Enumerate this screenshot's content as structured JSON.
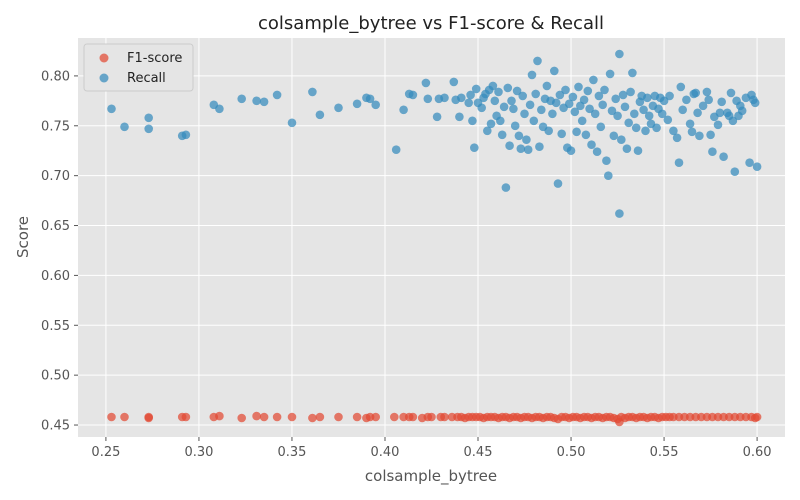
{
  "chart_data": {
    "type": "scatter",
    "title": "colsample_bytree vs F1-score & Recall",
    "xlabel": "colsample_bytree",
    "ylabel": "Score",
    "xlim": [
      0.235,
      0.615
    ],
    "ylim": [
      0.438,
      0.838
    ],
    "xticks": [
      "0.25",
      "0.30",
      "0.35",
      "0.40",
      "0.45",
      "0.50",
      "0.55",
      "0.60"
    ],
    "yticks": [
      "0.45",
      "0.50",
      "0.55",
      "0.60",
      "0.65",
      "0.70",
      "0.75",
      "0.80"
    ],
    "grid": true,
    "legend_position": "top-left",
    "series": [
      {
        "name": "F1-score",
        "color": "#E24A33",
        "points": [
          [
            0.253,
            0.458
          ],
          [
            0.26,
            0.458
          ],
          [
            0.273,
            0.458
          ],
          [
            0.273,
            0.457
          ],
          [
            0.291,
            0.458
          ],
          [
            0.293,
            0.458
          ],
          [
            0.308,
            0.458
          ],
          [
            0.311,
            0.459
          ],
          [
            0.323,
            0.457
          ],
          [
            0.331,
            0.459
          ],
          [
            0.335,
            0.458
          ],
          [
            0.342,
            0.458
          ],
          [
            0.35,
            0.458
          ],
          [
            0.361,
            0.457
          ],
          [
            0.365,
            0.458
          ],
          [
            0.375,
            0.458
          ],
          [
            0.385,
            0.458
          ],
          [
            0.39,
            0.457
          ],
          [
            0.392,
            0.458
          ],
          [
            0.395,
            0.458
          ],
          [
            0.405,
            0.458
          ],
          [
            0.41,
            0.458
          ],
          [
            0.413,
            0.458
          ],
          [
            0.415,
            0.458
          ],
          [
            0.42,
            0.457
          ],
          [
            0.423,
            0.458
          ],
          [
            0.425,
            0.458
          ],
          [
            0.43,
            0.458
          ],
          [
            0.432,
            0.458
          ],
          [
            0.436,
            0.458
          ],
          [
            0.439,
            0.458
          ],
          [
            0.441,
            0.458
          ],
          [
            0.443,
            0.457
          ],
          [
            0.445,
            0.458
          ],
          [
            0.447,
            0.458
          ],
          [
            0.449,
            0.458
          ],
          [
            0.451,
            0.458
          ],
          [
            0.453,
            0.457
          ],
          [
            0.455,
            0.458
          ],
          [
            0.457,
            0.458
          ],
          [
            0.459,
            0.458
          ],
          [
            0.461,
            0.457
          ],
          [
            0.463,
            0.458
          ],
          [
            0.465,
            0.458
          ],
          [
            0.467,
            0.457
          ],
          [
            0.469,
            0.458
          ],
          [
            0.471,
            0.458
          ],
          [
            0.473,
            0.457
          ],
          [
            0.475,
            0.458
          ],
          [
            0.477,
            0.458
          ],
          [
            0.479,
            0.457
          ],
          [
            0.481,
            0.458
          ],
          [
            0.483,
            0.458
          ],
          [
            0.485,
            0.457
          ],
          [
            0.487,
            0.458
          ],
          [
            0.489,
            0.458
          ],
          [
            0.491,
            0.457
          ],
          [
            0.493,
            0.456
          ],
          [
            0.495,
            0.458
          ],
          [
            0.497,
            0.458
          ],
          [
            0.499,
            0.457
          ],
          [
            0.501,
            0.458
          ],
          [
            0.503,
            0.458
          ],
          [
            0.505,
            0.457
          ],
          [
            0.507,
            0.458
          ],
          [
            0.509,
            0.458
          ],
          [
            0.511,
            0.457
          ],
          [
            0.513,
            0.458
          ],
          [
            0.515,
            0.458
          ],
          [
            0.517,
            0.457
          ],
          [
            0.519,
            0.458
          ],
          [
            0.521,
            0.458
          ],
          [
            0.523,
            0.457
          ],
          [
            0.525,
            0.456
          ],
          [
            0.526,
            0.453
          ],
          [
            0.527,
            0.458
          ],
          [
            0.529,
            0.457
          ],
          [
            0.531,
            0.458
          ],
          [
            0.533,
            0.458
          ],
          [
            0.535,
            0.457
          ],
          [
            0.537,
            0.458
          ],
          [
            0.539,
            0.458
          ],
          [
            0.541,
            0.457
          ],
          [
            0.543,
            0.458
          ],
          [
            0.545,
            0.458
          ],
          [
            0.547,
            0.457
          ],
          [
            0.549,
            0.458
          ],
          [
            0.551,
            0.458
          ],
          [
            0.553,
            0.458
          ],
          [
            0.555,
            0.458
          ],
          [
            0.558,
            0.458
          ],
          [
            0.561,
            0.458
          ],
          [
            0.564,
            0.458
          ],
          [
            0.567,
            0.458
          ],
          [
            0.57,
            0.458
          ],
          [
            0.573,
            0.458
          ],
          [
            0.576,
            0.458
          ],
          [
            0.579,
            0.458
          ],
          [
            0.582,
            0.458
          ],
          [
            0.585,
            0.458
          ],
          [
            0.588,
            0.458
          ],
          [
            0.591,
            0.458
          ],
          [
            0.594,
            0.458
          ],
          [
            0.597,
            0.458
          ],
          [
            0.599,
            0.457
          ],
          [
            0.6,
            0.458
          ]
        ]
      },
      {
        "name": "Recall",
        "color": "#348ABD",
        "points": [
          [
            0.253,
            0.767
          ],
          [
            0.26,
            0.749
          ],
          [
            0.273,
            0.758
          ],
          [
            0.273,
            0.747
          ],
          [
            0.291,
            0.74
          ],
          [
            0.293,
            0.741
          ],
          [
            0.308,
            0.771
          ],
          [
            0.311,
            0.767
          ],
          [
            0.323,
            0.777
          ],
          [
            0.331,
            0.775
          ],
          [
            0.335,
            0.774
          ],
          [
            0.342,
            0.781
          ],
          [
            0.35,
            0.753
          ],
          [
            0.361,
            0.784
          ],
          [
            0.365,
            0.761
          ],
          [
            0.375,
            0.768
          ],
          [
            0.385,
            0.772
          ],
          [
            0.39,
            0.778
          ],
          [
            0.392,
            0.777
          ],
          [
            0.395,
            0.771
          ],
          [
            0.406,
            0.726
          ],
          [
            0.41,
            0.766
          ],
          [
            0.413,
            0.782
          ],
          [
            0.415,
            0.781
          ],
          [
            0.422,
            0.793
          ],
          [
            0.423,
            0.777
          ],
          [
            0.428,
            0.759
          ],
          [
            0.429,
            0.777
          ],
          [
            0.432,
            0.778
          ],
          [
            0.437,
            0.794
          ],
          [
            0.438,
            0.776
          ],
          [
            0.44,
            0.759
          ],
          [
            0.441,
            0.778
          ],
          [
            0.445,
            0.773
          ],
          [
            0.446,
            0.781
          ],
          [
            0.447,
            0.755
          ],
          [
            0.448,
            0.728
          ],
          [
            0.449,
            0.787
          ],
          [
            0.45,
            0.773
          ],
          [
            0.452,
            0.768
          ],
          [
            0.453,
            0.778
          ],
          [
            0.454,
            0.782
          ],
          [
            0.455,
            0.745
          ],
          [
            0.456,
            0.786
          ],
          [
            0.457,
            0.752
          ],
          [
            0.458,
            0.79
          ],
          [
            0.459,
            0.775
          ],
          [
            0.46,
            0.76
          ],
          [
            0.461,
            0.784
          ],
          [
            0.462,
            0.755
          ],
          [
            0.463,
            0.741
          ],
          [
            0.464,
            0.769
          ],
          [
            0.465,
            0.688
          ],
          [
            0.466,
            0.788
          ],
          [
            0.467,
            0.73
          ],
          [
            0.468,
            0.775
          ],
          [
            0.469,
            0.767
          ],
          [
            0.47,
            0.75
          ],
          [
            0.471,
            0.785
          ],
          [
            0.472,
            0.74
          ],
          [
            0.473,
            0.727
          ],
          [
            0.474,
            0.78
          ],
          [
            0.475,
            0.762
          ],
          [
            0.476,
            0.736
          ],
          [
            0.477,
            0.726
          ],
          [
            0.478,
            0.771
          ],
          [
            0.479,
            0.801
          ],
          [
            0.48,
            0.755
          ],
          [
            0.481,
            0.782
          ],
          [
            0.482,
            0.815
          ],
          [
            0.483,
            0.729
          ],
          [
            0.484,
            0.766
          ],
          [
            0.485,
            0.749
          ],
          [
            0.486,
            0.777
          ],
          [
            0.487,
            0.79
          ],
          [
            0.488,
            0.745
          ],
          [
            0.489,
            0.775
          ],
          [
            0.49,
            0.762
          ],
          [
            0.491,
            0.805
          ],
          [
            0.492,
            0.773
          ],
          [
            0.493,
            0.692
          ],
          [
            0.494,
            0.781
          ],
          [
            0.495,
            0.742
          ],
          [
            0.496,
            0.768
          ],
          [
            0.497,
            0.786
          ],
          [
            0.498,
            0.728
          ],
          [
            0.499,
            0.772
          ],
          [
            0.5,
            0.725
          ],
          [
            0.501,
            0.779
          ],
          [
            0.502,
            0.764
          ],
          [
            0.503,
            0.744
          ],
          [
            0.504,
            0.789
          ],
          [
            0.505,
            0.77
          ],
          [
            0.506,
            0.755
          ],
          [
            0.507,
            0.776
          ],
          [
            0.508,
            0.741
          ],
          [
            0.509,
            0.785
          ],
          [
            0.51,
            0.767
          ],
          [
            0.511,
            0.731
          ],
          [
            0.512,
            0.796
          ],
          [
            0.513,
            0.762
          ],
          [
            0.514,
            0.724
          ],
          [
            0.515,
            0.78
          ],
          [
            0.516,
            0.749
          ],
          [
            0.517,
            0.771
          ],
          [
            0.518,
            0.786
          ],
          [
            0.519,
            0.715
          ],
          [
            0.52,
            0.7
          ],
          [
            0.521,
            0.802
          ],
          [
            0.522,
            0.765
          ],
          [
            0.523,
            0.74
          ],
          [
            0.524,
            0.777
          ],
          [
            0.525,
            0.76
          ],
          [
            0.526,
            0.662
          ],
          [
            0.526,
            0.822
          ],
          [
            0.527,
            0.736
          ],
          [
            0.528,
            0.781
          ],
          [
            0.529,
            0.769
          ],
          [
            0.53,
            0.727
          ],
          [
            0.531,
            0.753
          ],
          [
            0.532,
            0.784
          ],
          [
            0.533,
            0.803
          ],
          [
            0.534,
            0.762
          ],
          [
            0.535,
            0.748
          ],
          [
            0.536,
            0.725
          ],
          [
            0.537,
            0.774
          ],
          [
            0.538,
            0.78
          ],
          [
            0.539,
            0.766
          ],
          [
            0.54,
            0.745
          ],
          [
            0.541,
            0.778
          ],
          [
            0.542,
            0.76
          ],
          [
            0.543,
            0.752
          ],
          [
            0.544,
            0.77
          ],
          [
            0.545,
            0.78
          ],
          [
            0.546,
            0.748
          ],
          [
            0.547,
            0.767
          ],
          [
            0.548,
            0.778
          ],
          [
            0.549,
            0.762
          ],
          [
            0.55,
            0.775
          ],
          [
            0.552,
            0.756
          ],
          [
            0.553,
            0.78
          ],
          [
            0.555,
            0.745
          ],
          [
            0.557,
            0.738
          ],
          [
            0.558,
            0.713
          ],
          [
            0.559,
            0.789
          ],
          [
            0.56,
            0.766
          ],
          [
            0.562,
            0.776
          ],
          [
            0.564,
            0.752
          ],
          [
            0.565,
            0.744
          ],
          [
            0.566,
            0.782
          ],
          [
            0.567,
            0.783
          ],
          [
            0.568,
            0.763
          ],
          [
            0.569,
            0.74
          ],
          [
            0.571,
            0.77
          ],
          [
            0.573,
            0.784
          ],
          [
            0.574,
            0.776
          ],
          [
            0.575,
            0.741
          ],
          [
            0.576,
            0.724
          ],
          [
            0.577,
            0.759
          ],
          [
            0.579,
            0.751
          ],
          [
            0.58,
            0.763
          ],
          [
            0.581,
            0.774
          ],
          [
            0.582,
            0.719
          ],
          [
            0.584,
            0.763
          ],
          [
            0.585,
            0.76
          ],
          [
            0.586,
            0.783
          ],
          [
            0.587,
            0.755
          ],
          [
            0.588,
            0.704
          ],
          [
            0.589,
            0.775
          ],
          [
            0.59,
            0.76
          ],
          [
            0.591,
            0.77
          ],
          [
            0.592,
            0.765
          ],
          [
            0.594,
            0.778
          ],
          [
            0.596,
            0.713
          ],
          [
            0.597,
            0.781
          ],
          [
            0.598,
            0.776
          ],
          [
            0.599,
            0.773
          ],
          [
            0.6,
            0.709
          ]
        ]
      }
    ]
  }
}
